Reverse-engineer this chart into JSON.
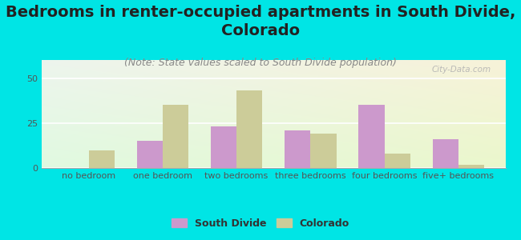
{
  "title": "Bedrooms in renter-occupied apartments in South Divide,\nColorado",
  "subtitle": "(Note: State values scaled to South Divide population)",
  "categories": [
    "no bedroom",
    "one bedroom",
    "two bedrooms",
    "three bedrooms",
    "four bedrooms",
    "five+ bedrooms"
  ],
  "south_divide": [
    0,
    15,
    23,
    21,
    35,
    16
  ],
  "colorado": [
    10,
    35,
    43,
    19,
    8,
    2
  ],
  "sd_color": "#cc99cc",
  "co_color": "#cccc99",
  "bg_outer": "#00e5e5",
  "ylim": [
    0,
    60
  ],
  "yticks": [
    0,
    25,
    50
  ],
  "bar_width": 0.35,
  "title_fontsize": 14,
  "subtitle_fontsize": 9,
  "tick_fontsize": 8,
  "legend_fontsize": 9,
  "watermark": "City-Data.com"
}
